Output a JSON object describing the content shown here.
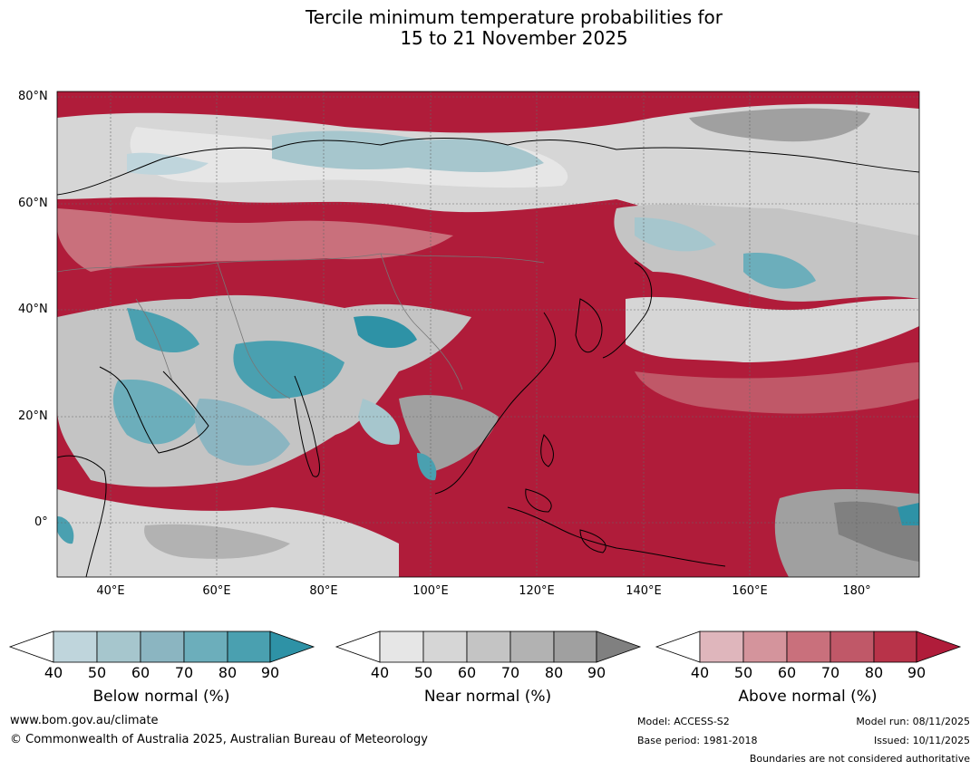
{
  "title": {
    "line1": "Tercile minimum temperature probabilities for",
    "line2": "15 to 21 November 2025"
  },
  "map": {
    "lat_labels": [
      "80°N",
      "60°N",
      "40°N",
      "20°N",
      "0°"
    ],
    "lon_labels": [
      "40°E",
      "60°E",
      "80°E",
      "100°E",
      "120°E",
      "140°E",
      "160°E",
      "180°"
    ],
    "region": "Asia, Middle East, Indian Ocean and Western Pacific"
  },
  "colorbars": [
    {
      "name": "below",
      "label": "Below normal (%)",
      "ticks": [
        "40",
        "50",
        "60",
        "70",
        "80",
        "90"
      ],
      "colors": [
        "#ffffff",
        "#bfd5dc",
        "#a6c6cd",
        "#8bb5c1",
        "#6caebb",
        "#4aa0b0",
        "#2e92a6"
      ]
    },
    {
      "name": "near",
      "label": "Near normal (%)",
      "ticks": [
        "40",
        "50",
        "60",
        "70",
        "80",
        "90"
      ],
      "colors": [
        "#ffffff",
        "#e6e6e6",
        "#d6d6d6",
        "#c4c4c4",
        "#b2b2b2",
        "#a0a0a0",
        "#808080"
      ]
    },
    {
      "name": "above",
      "label": "Above normal (%)",
      "ticks": [
        "40",
        "50",
        "60",
        "70",
        "80",
        "90"
      ],
      "colors": [
        "#ffffff",
        "#dfb6bc",
        "#d4949c",
        "#c9707c",
        "#c05868",
        "#b83349",
        "#b01c3a"
      ]
    }
  ],
  "footer": {
    "website": "www.bom.gov.au/climate",
    "copyright": "© Commonwealth of Australia 2025, Australian Bureau of Meteorology",
    "model": "Model: ACCESS-S2",
    "base_period": "Base period: 1981-2018",
    "model_run": "Model run: 08/11/2025",
    "issued": "Issued: 10/11/2025",
    "disclaimer": "Boundaries are not considered authoritative"
  }
}
